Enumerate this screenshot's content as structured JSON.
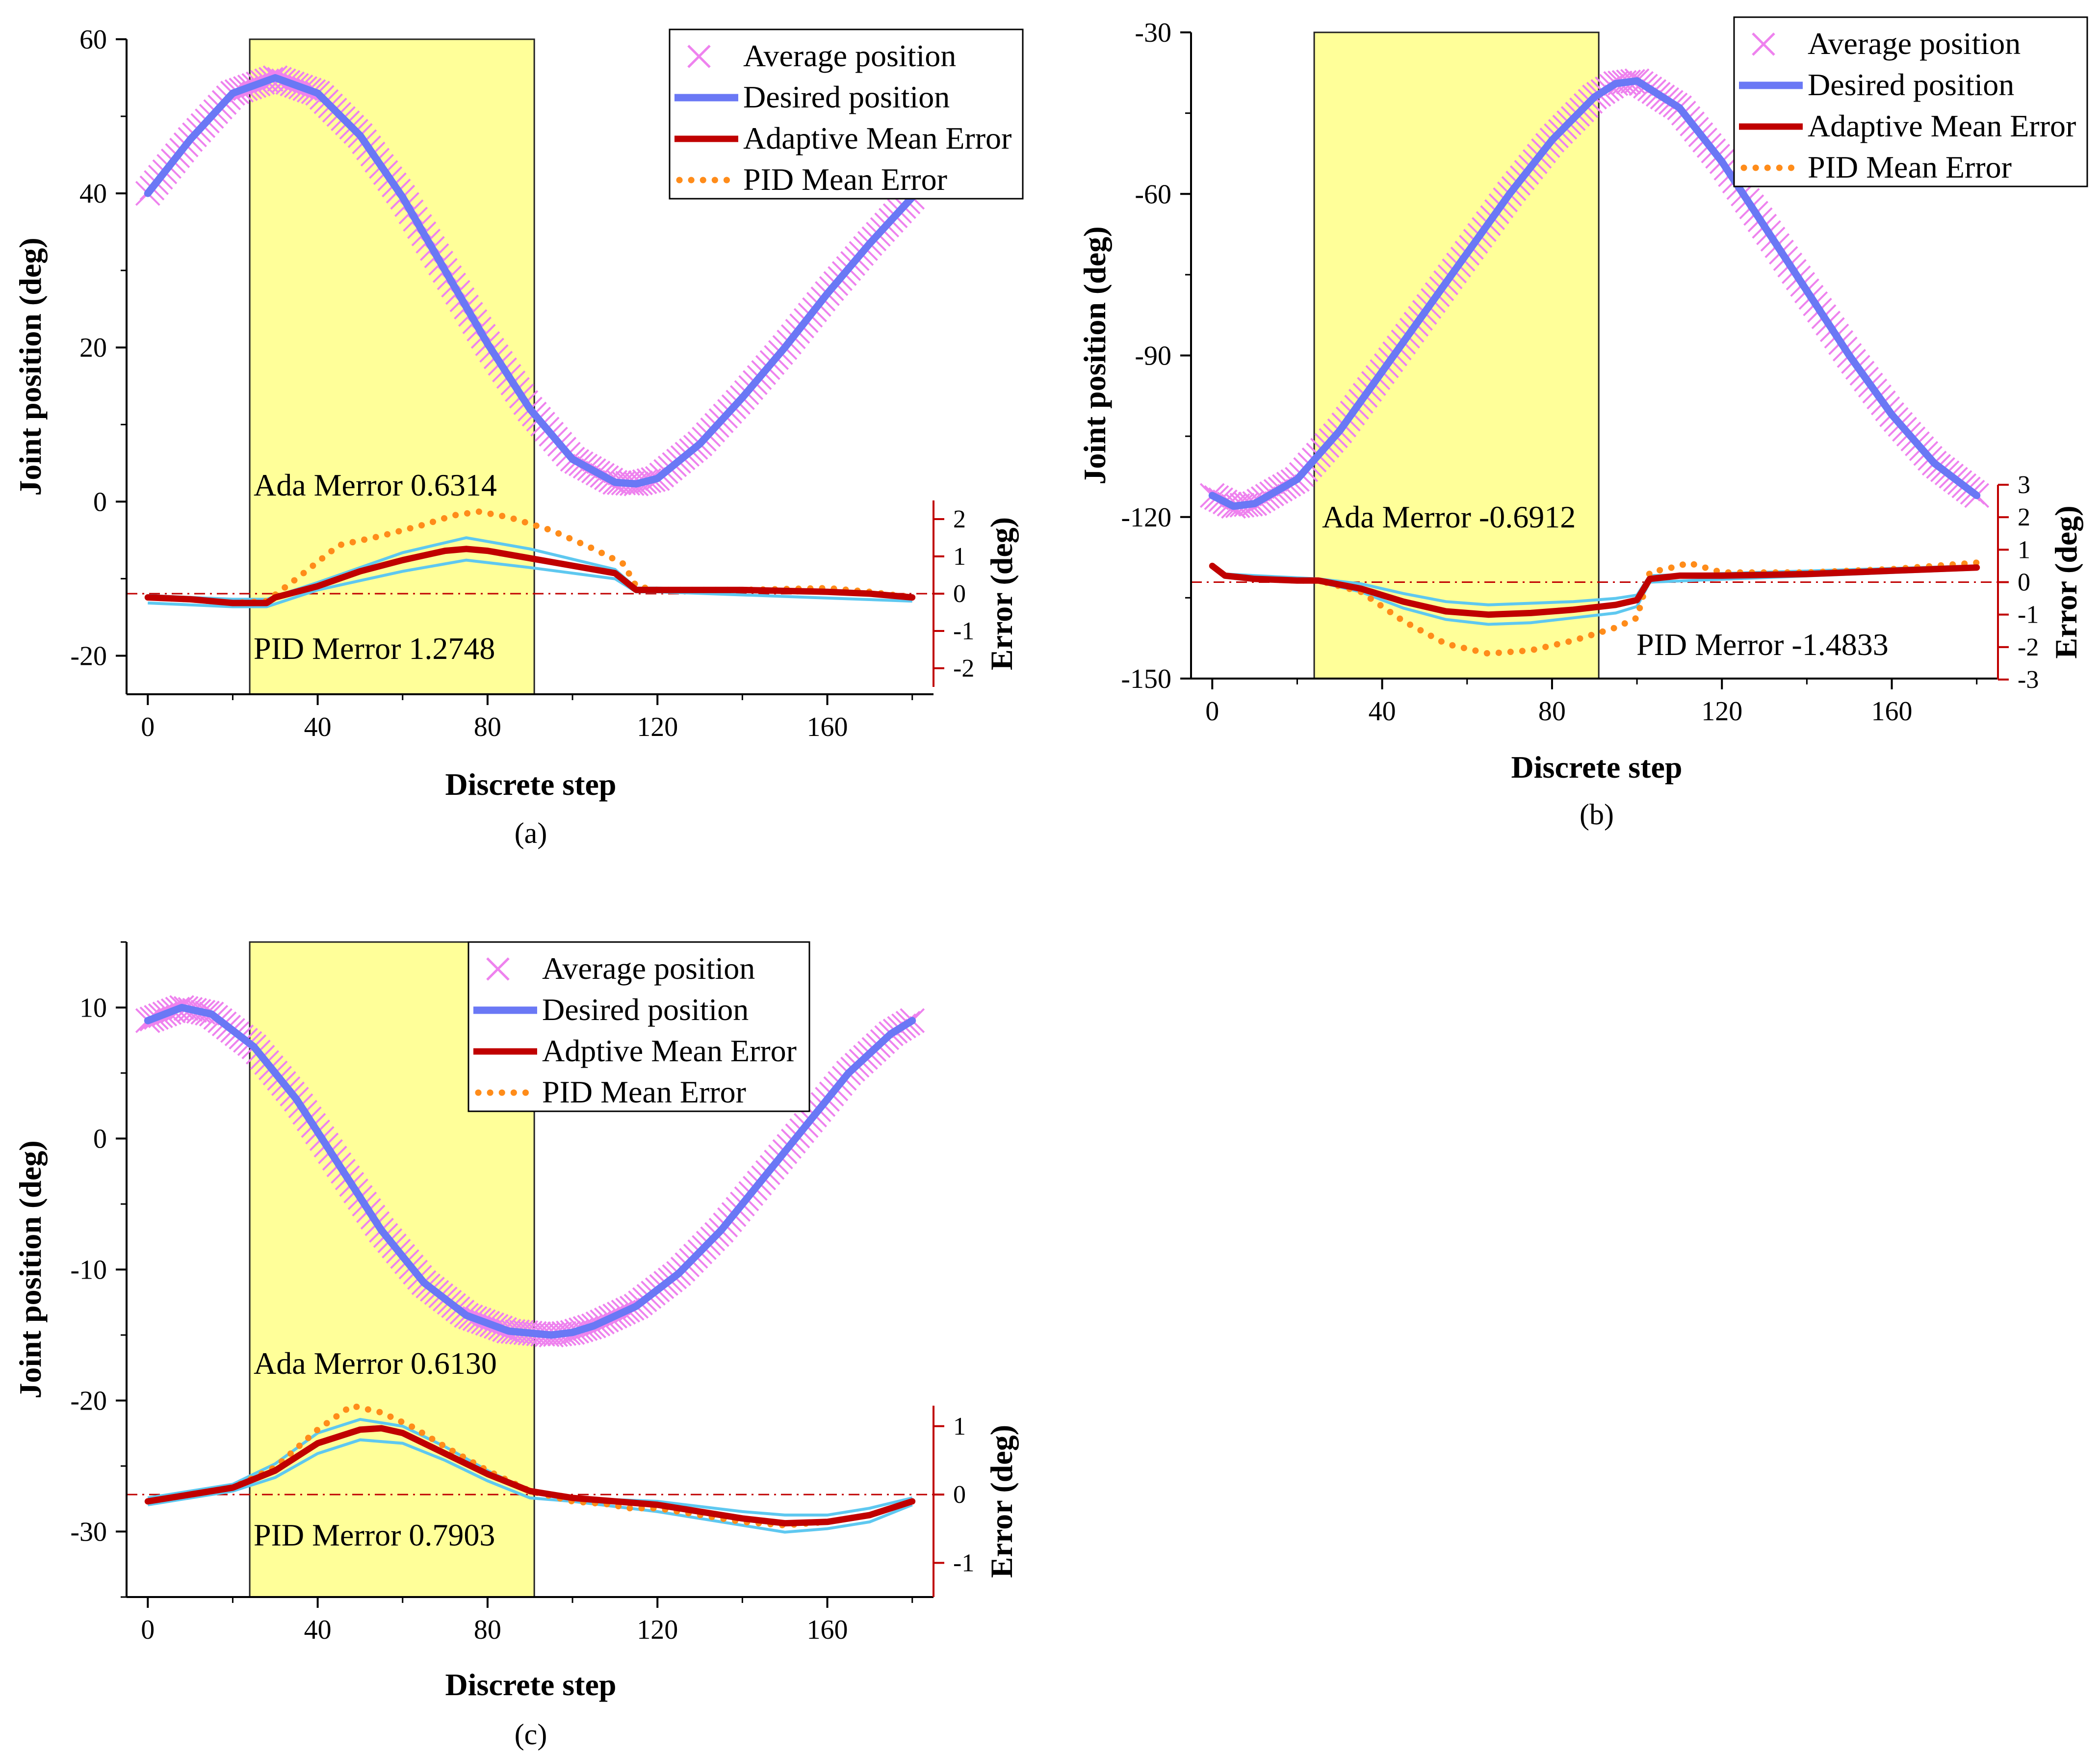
{
  "figure": {
    "panel_captions": [
      "(a)",
      "(b)",
      "(c)"
    ]
  },
  "colors": {
    "highlight": "#ffff99",
    "average": "#ee82ee",
    "desired": "#6a78f5",
    "band": "#5ec8f0",
    "adaptive": "#c00000",
    "pid": "#ff8c1a",
    "zero_line": "#c00000",
    "error_axis": "#c00000"
  },
  "chart_data": [
    {
      "type": "line",
      "caption": "(a)",
      "xlabel": "Discrete step",
      "ylabel": "Joint position (deg)",
      "y2label": "Error (deg)",
      "xlim": [
        -5,
        185
      ],
      "xticks": [
        0,
        40,
        80,
        120,
        160
      ],
      "ylim": [
        -25,
        60
      ],
      "yticks": [
        -20,
        0,
        20,
        40,
        60
      ],
      "y2lim": [
        -2.5,
        2.5
      ],
      "y2ticks": [
        -2,
        -1,
        0,
        1,
        2
      ],
      "highlight_x": [
        24,
        91
      ],
      "legend": [
        "Average position",
        "Desired position",
        "Adaptive Mean Error",
        "PID Mean Error"
      ],
      "annotations": {
        "ada": "Ada Merror  0.6314",
        "pid": "PID Merror  1.2748"
      },
      "series": [
        {
          "name": "Desired position",
          "axis": "left",
          "x": [
            0,
            10,
            20,
            30,
            40,
            50,
            60,
            70,
            80,
            90,
            100,
            110,
            115,
            120,
            130,
            140,
            150,
            160,
            170,
            180
          ],
          "values": [
            40,
            47,
            53,
            55,
            53,
            47.5,
            39.5,
            30,
            20.5,
            12,
            5.5,
            2.5,
            2.3,
            3,
            7.5,
            13.5,
            20,
            27,
            33.5,
            39.5
          ]
        },
        {
          "name": "Average position",
          "axis": "left",
          "x": [
            0,
            10,
            20,
            30,
            40,
            50,
            60,
            70,
            80,
            90,
            100,
            110,
            115,
            120,
            130,
            140,
            150,
            160,
            170,
            180
          ],
          "values": [
            40,
            47,
            53,
            55,
            53,
            47.5,
            39.5,
            30,
            20.5,
            12,
            5.5,
            2.5,
            2.3,
            3,
            7.5,
            13.5,
            20,
            27,
            33.5,
            39.5
          ]
        },
        {
          "name": "Adaptive Mean Error",
          "axis": "right",
          "x": [
            0,
            10,
            20,
            28,
            30,
            40,
            50,
            60,
            70,
            75,
            80,
            90,
            100,
            110,
            115,
            120,
            140,
            160,
            170,
            180
          ],
          "values": [
            -0.1,
            -0.15,
            -0.25,
            -0.25,
            -0.1,
            0.2,
            0.6,
            0.9,
            1.15,
            1.2,
            1.15,
            0.95,
            0.75,
            0.55,
            0.1,
            0.1,
            0.1,
            0.05,
            0,
            -0.1
          ]
        },
        {
          "name": "PID Mean Error",
          "axis": "right",
          "x": [
            0,
            10,
            20,
            28,
            35,
            45,
            55,
            65,
            72,
            78,
            85,
            95,
            105,
            112,
            115,
            120,
            140,
            160,
            170,
            180
          ],
          "values": [
            -0.1,
            -0.15,
            -0.25,
            -0.2,
            0.4,
            1.3,
            1.55,
            1.85,
            2.1,
            2.2,
            2.05,
            1.7,
            1.2,
            0.8,
            0.2,
            0.1,
            0.1,
            0.15,
            0.05,
            -0.1
          ]
        },
        {
          "name": "Error band upper",
          "axis": "right",
          "x": [
            0,
            20,
            28,
            40,
            60,
            75,
            90,
            110,
            115,
            120,
            180
          ],
          "values": [
            -0.05,
            -0.15,
            -0.15,
            0.3,
            1.1,
            1.5,
            1.2,
            0.65,
            0.15,
            0.15,
            -0.05
          ]
        },
        {
          "name": "Error band lower",
          "axis": "right",
          "x": [
            0,
            20,
            28,
            40,
            60,
            75,
            90,
            110,
            115,
            120,
            180
          ],
          "values": [
            -0.25,
            -0.35,
            -0.35,
            0.1,
            0.6,
            0.9,
            0.7,
            0.4,
            0.05,
            0.05,
            -0.2
          ]
        }
      ]
    },
    {
      "type": "line",
      "caption": "(b)",
      "xlabel": "Discrete step",
      "ylabel": "Joint position (deg)",
      "y2label": "Error (deg)",
      "xlim": [
        -5,
        185
      ],
      "xticks": [
        0,
        40,
        80,
        120,
        160
      ],
      "ylim": [
        -150,
        -30
      ],
      "yticks": [
        -150,
        -120,
        -90,
        -60,
        -30
      ],
      "y2lim": [
        -3,
        3
      ],
      "y2ticks": [
        -3,
        -2,
        -1,
        0,
        1,
        2,
        3
      ],
      "highlight_x": [
        24,
        91
      ],
      "legend": [
        "Average position",
        "Desired position",
        "Adaptive Mean Error",
        "PID Mean Error"
      ],
      "annotations": {
        "ada": "Ada Merror -0.6912",
        "pid": "PID Merror -1.4833"
      },
      "series": [
        {
          "name": "Desired position",
          "axis": "left",
          "x": [
            0,
            5,
            10,
            20,
            30,
            40,
            50,
            60,
            70,
            80,
            90,
            95,
            100,
            110,
            120,
            130,
            140,
            150,
            160,
            170,
            180
          ],
          "values": [
            -116,
            -118,
            -117.5,
            -113,
            -104,
            -93,
            -82,
            -71,
            -60,
            -50,
            -42,
            -39.5,
            -39,
            -44,
            -54,
            -66,
            -78,
            -90,
            -101,
            -110,
            -116
          ]
        },
        {
          "name": "Average position",
          "axis": "left",
          "x": [
            0,
            5,
            10,
            20,
            30,
            40,
            50,
            60,
            70,
            80,
            90,
            95,
            100,
            110,
            120,
            130,
            140,
            150,
            160,
            170,
            180
          ],
          "values": [
            -116,
            -118,
            -117.5,
            -113,
            -104,
            -93,
            -82,
            -71,
            -60,
            -50,
            -42,
            -39.5,
            -39,
            -44,
            -54,
            -66,
            -78,
            -90,
            -101,
            -110,
            -116
          ]
        },
        {
          "name": "Adaptive Mean Error",
          "axis": "right",
          "x": [
            0,
            3,
            10,
            20,
            25,
            35,
            45,
            55,
            65,
            75,
            85,
            95,
            100,
            103,
            110,
            120,
            140,
            160,
            170,
            180
          ],
          "values": [
            0.5,
            0.2,
            0.1,
            0.05,
            0.05,
            -0.2,
            -0.6,
            -0.9,
            -1.0,
            -0.95,
            -0.85,
            -0.7,
            -0.55,
            0.1,
            0.2,
            0.2,
            0.25,
            0.35,
            0.4,
            0.45
          ]
        },
        {
          "name": "PID Mean Error",
          "axis": "right",
          "x": [
            0,
            3,
            10,
            20,
            25,
            35,
            45,
            55,
            65,
            75,
            85,
            95,
            100,
            103,
            110,
            112,
            120,
            140,
            160,
            170,
            180
          ],
          "values": [
            0.5,
            0.2,
            0.1,
            0.05,
            0.05,
            -0.3,
            -1.2,
            -1.9,
            -2.2,
            -2.1,
            -1.8,
            -1.4,
            -1.1,
            0.3,
            0.5,
            0.6,
            0.3,
            0.3,
            0.4,
            0.5,
            0.6
          ]
        },
        {
          "name": "Error band upper",
          "axis": "right",
          "x": [
            0,
            3,
            25,
            35,
            45,
            55,
            65,
            75,
            85,
            95,
            100,
            103,
            180
          ],
          "values": [
            0.55,
            0.25,
            0.1,
            -0.05,
            -0.35,
            -0.6,
            -0.7,
            -0.65,
            -0.6,
            -0.5,
            -0.4,
            0.2,
            0.5
          ]
        },
        {
          "name": "Error band lower",
          "axis": "right",
          "x": [
            0,
            3,
            25,
            35,
            45,
            55,
            65,
            75,
            85,
            95,
            100,
            103,
            180
          ],
          "values": [
            0.45,
            0.15,
            0.0,
            -0.3,
            -0.8,
            -1.15,
            -1.3,
            -1.25,
            -1.1,
            -0.95,
            -0.75,
            0.0,
            0.4
          ]
        }
      ]
    },
    {
      "type": "line",
      "caption": "(c)",
      "xlabel": "Discrete step",
      "ylabel": "Joint position (deg)",
      "y2label": "Error (deg)",
      "xlim": [
        -5,
        185
      ],
      "xticks": [
        0,
        40,
        80,
        120,
        160
      ],
      "ylim": [
        -35,
        15
      ],
      "yticks": [
        -30,
        -20,
        -10,
        0,
        10
      ],
      "y2lim": [
        -1.5,
        1.3
      ],
      "y2ticks": [
        -1,
        0,
        1
      ],
      "highlight_x": [
        24,
        91
      ],
      "legend": [
        "Average position",
        "Desired position",
        "Adptive Mean Error",
        "PID Mean Error"
      ],
      "annotations": {
        "ada": "Ada Merror 0.6130",
        "pid": "PID Merror 0.7903"
      },
      "series": [
        {
          "name": "Desired position",
          "axis": "left",
          "x": [
            0,
            8,
            15,
            25,
            35,
            45,
            55,
            65,
            75,
            85,
            95,
            100,
            105,
            115,
            125,
            135,
            145,
            155,
            165,
            175,
            180
          ],
          "values": [
            9,
            10,
            9.5,
            7,
            3,
            -2,
            -7,
            -11,
            -13.5,
            -14.7,
            -15,
            -14.8,
            -14.3,
            -12.8,
            -10.3,
            -7,
            -3,
            1,
            5,
            8,
            9
          ]
        },
        {
          "name": "Average position",
          "axis": "left",
          "x": [
            0,
            8,
            15,
            25,
            35,
            45,
            55,
            65,
            75,
            85,
            95,
            100,
            105,
            115,
            125,
            135,
            145,
            155,
            165,
            175,
            180
          ],
          "values": [
            9,
            10,
            9.5,
            7,
            3,
            -2,
            -7,
            -11,
            -13.5,
            -14.7,
            -15,
            -14.8,
            -14.3,
            -12.8,
            -10.3,
            -7,
            -3,
            1,
            5,
            8,
            9
          ]
        },
        {
          "name": "Adaptive Mean Error",
          "axis": "right",
          "x": [
            0,
            10,
            20,
            30,
            40,
            50,
            55,
            60,
            70,
            80,
            90,
            100,
            110,
            120,
            130,
            140,
            150,
            160,
            170,
            180
          ],
          "values": [
            -0.1,
            0,
            0.1,
            0.35,
            0.75,
            0.95,
            0.97,
            0.9,
            0.6,
            0.3,
            0.05,
            -0.05,
            -0.1,
            -0.15,
            -0.25,
            -0.35,
            -0.42,
            -0.4,
            -0.3,
            -0.1
          ]
        },
        {
          "name": "PID Mean Error",
          "axis": "right",
          "x": [
            0,
            10,
            20,
            30,
            40,
            48,
            55,
            62,
            70,
            80,
            90,
            100,
            110,
            112,
            120,
            130,
            140,
            150,
            160,
            170,
            180
          ],
          "values": [
            -0.1,
            0,
            0.1,
            0.4,
            0.95,
            1.3,
            1.2,
            1.0,
            0.7,
            0.35,
            0.05,
            -0.1,
            -0.15,
            -0.2,
            -0.2,
            -0.3,
            -0.4,
            -0.45,
            -0.4,
            -0.3,
            -0.1
          ]
        },
        {
          "name": "Error band upper",
          "axis": "right",
          "x": [
            0,
            20,
            30,
            40,
            50,
            60,
            70,
            80,
            90,
            100,
            120,
            140,
            150,
            160,
            170,
            180
          ],
          "values": [
            -0.05,
            0.15,
            0.45,
            0.9,
            1.1,
            1.0,
            0.7,
            0.35,
            0.05,
            -0.05,
            -0.1,
            -0.25,
            -0.3,
            -0.3,
            -0.2,
            -0.05
          ]
        },
        {
          "name": "Error band lower",
          "axis": "right",
          "x": [
            0,
            20,
            30,
            40,
            50,
            60,
            70,
            80,
            90,
            100,
            120,
            140,
            150,
            160,
            170,
            180
          ],
          "values": [
            -0.15,
            0.05,
            0.25,
            0.6,
            0.8,
            0.75,
            0.5,
            0.2,
            -0.05,
            -0.1,
            -0.25,
            -0.45,
            -0.55,
            -0.5,
            -0.4,
            -0.15
          ]
        }
      ]
    }
  ]
}
